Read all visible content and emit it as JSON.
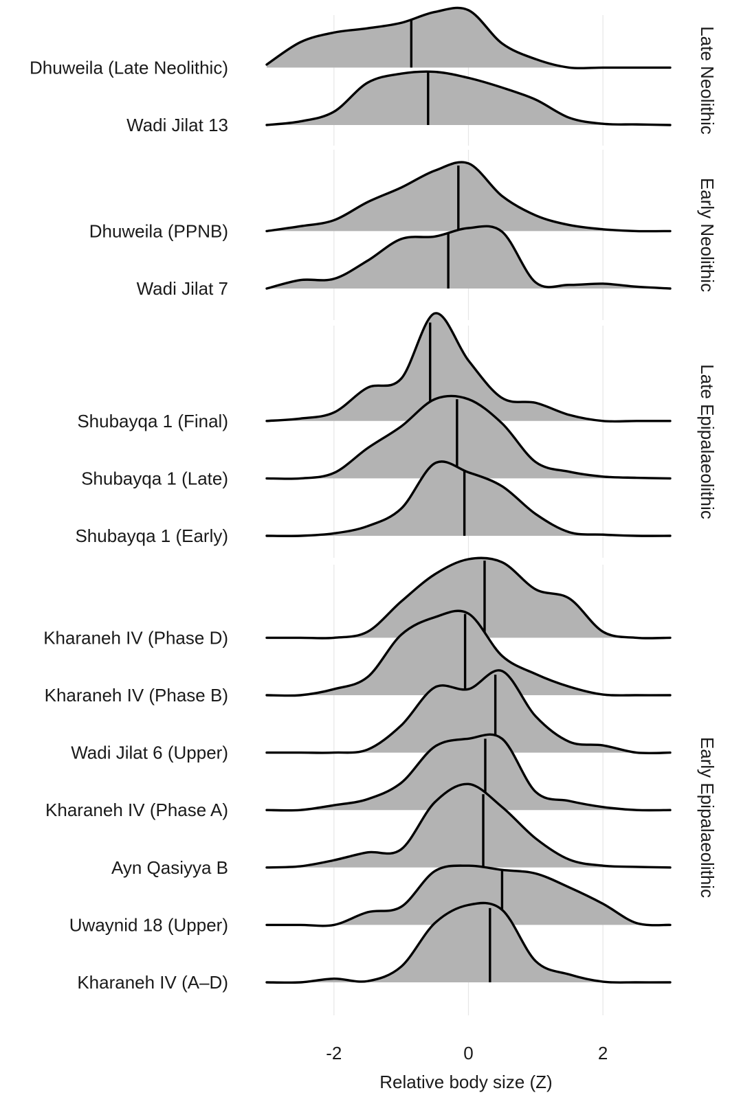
{
  "chart_data": {
    "type": "ridgeline",
    "xlabel": "Relative body size (Z)",
    "xlim": [
      -3,
      3
    ],
    "x_ticks": [
      -2,
      0,
      2
    ],
    "x_tick_labels": [
      "-2",
      "0",
      "2"
    ],
    "grid": "vertical major gridlines",
    "fill_color": "#b3b3b3",
    "line_color": "#000000",
    "x": [
      -3.0,
      -2.5,
      -2.0,
      -1.5,
      -1.0,
      -0.5,
      0.0,
      0.5,
      1.0,
      1.5,
      2.0,
      2.5,
      3.0
    ],
    "facets": [
      {
        "label": "Late Neolithic",
        "series": [
          {
            "name": "Dhuweila (Late Neolithic)",
            "median": -0.85,
            "density": [
              0.05,
              0.42,
              0.58,
              0.65,
              0.74,
              0.92,
              0.95,
              0.4,
              0.14,
              0.0,
              0.0,
              0.0,
              0.0
            ]
          },
          {
            "name": "Wadi Jilat 13",
            "median": -0.6,
            "density": [
              0.0,
              0.06,
              0.22,
              0.7,
              0.85,
              0.88,
              0.78,
              0.62,
              0.42,
              0.12,
              0.02,
              0.01,
              0.0
            ]
          }
        ]
      },
      {
        "label": "Early Neolithic",
        "series": [
          {
            "name": "Dhuweila (PPNB)",
            "median": -0.15,
            "density": [
              0.0,
              0.08,
              0.18,
              0.48,
              0.72,
              1.0,
              1.12,
              0.58,
              0.26,
              0.1,
              0.03,
              0.0,
              0.0
            ]
          },
          {
            "name": "Wadi Jilat 7",
            "median": -0.3,
            "density": [
              0.0,
              0.14,
              0.16,
              0.46,
              0.82,
              0.86,
              1.0,
              0.94,
              0.1,
              0.06,
              0.08,
              0.03,
              0.0
            ]
          }
        ]
      },
      {
        "label": "Late Epipalaeolithic",
        "series": [
          {
            "name": "Shubayqa 1 (Final)",
            "median": -0.57,
            "density": [
              0.0,
              0.04,
              0.14,
              0.55,
              0.7,
              1.78,
              1.0,
              0.38,
              0.3,
              0.1,
              0.0,
              0.0,
              0.0
            ]
          },
          {
            "name": "Shubayqa 1 (Late)",
            "median": -0.17,
            "density": [
              0.0,
              0.0,
              0.09,
              0.5,
              0.86,
              1.31,
              1.31,
              0.91,
              0.27,
              0.11,
              0.03,
              0.01,
              0.0
            ]
          },
          {
            "name": "Shubayqa 1 (Early)",
            "median": -0.06,
            "density": [
              0.0,
              0.0,
              0.04,
              0.16,
              0.45,
              1.2,
              1.05,
              0.82,
              0.36,
              0.06,
              0.02,
              0.0,
              0.0
            ]
          }
        ]
      },
      {
        "label": "Early Epipalaeolithic",
        "series": [
          {
            "name": "Kharaneh IV (Phase D)",
            "median": 0.24,
            "density": [
              0.0,
              0.0,
              0.0,
              0.1,
              0.6,
              1.05,
              1.3,
              1.25,
              0.8,
              0.65,
              0.1,
              0.0,
              0.0
            ]
          },
          {
            "name": "Kharaneh IV (Phase B)",
            "median": -0.05,
            "density": [
              0.0,
              0.0,
              0.1,
              0.3,
              1.0,
              1.29,
              1.35,
              0.65,
              0.35,
              0.14,
              0.01,
              0.0,
              0.0
            ]
          },
          {
            "name": "Wadi Jilat 6 (Upper)",
            "median": 0.4,
            "density": [
              0.0,
              0.0,
              0.0,
              0.05,
              0.45,
              1.08,
              1.05,
              1.35,
              0.6,
              0.18,
              0.12,
              0.0,
              0.0
            ]
          },
          {
            "name": "Kharaneh IV (Phase A)",
            "median": 0.25,
            "density": [
              0.0,
              0.0,
              0.08,
              0.18,
              0.45,
              1.05,
              1.18,
              1.18,
              0.3,
              0.15,
              0.05,
              0.0,
              0.0
            ]
          },
          {
            "name": "Ayn Qasiyya B",
            "median": 0.22,
            "density": [
              0.0,
              0.02,
              0.12,
              0.25,
              0.3,
              1.08,
              1.38,
              1.0,
              0.48,
              0.13,
              0.03,
              0.01,
              0.0
            ]
          },
          {
            "name": "Uwaynid 18 (Upper)",
            "median": 0.5,
            "density": [
              0.0,
              0.0,
              0.0,
              0.21,
              0.3,
              0.89,
              0.98,
              0.91,
              0.85,
              0.62,
              0.35,
              0.03,
              0.0
            ]
          },
          {
            "name": "Kharaneh IV (A–D)",
            "median": 0.32,
            "density": [
              0.0,
              0.0,
              0.06,
              0.02,
              0.26,
              0.98,
              1.28,
              1.2,
              0.35,
              0.13,
              0.01,
              0.0,
              0.0
            ]
          }
        ]
      }
    ]
  }
}
